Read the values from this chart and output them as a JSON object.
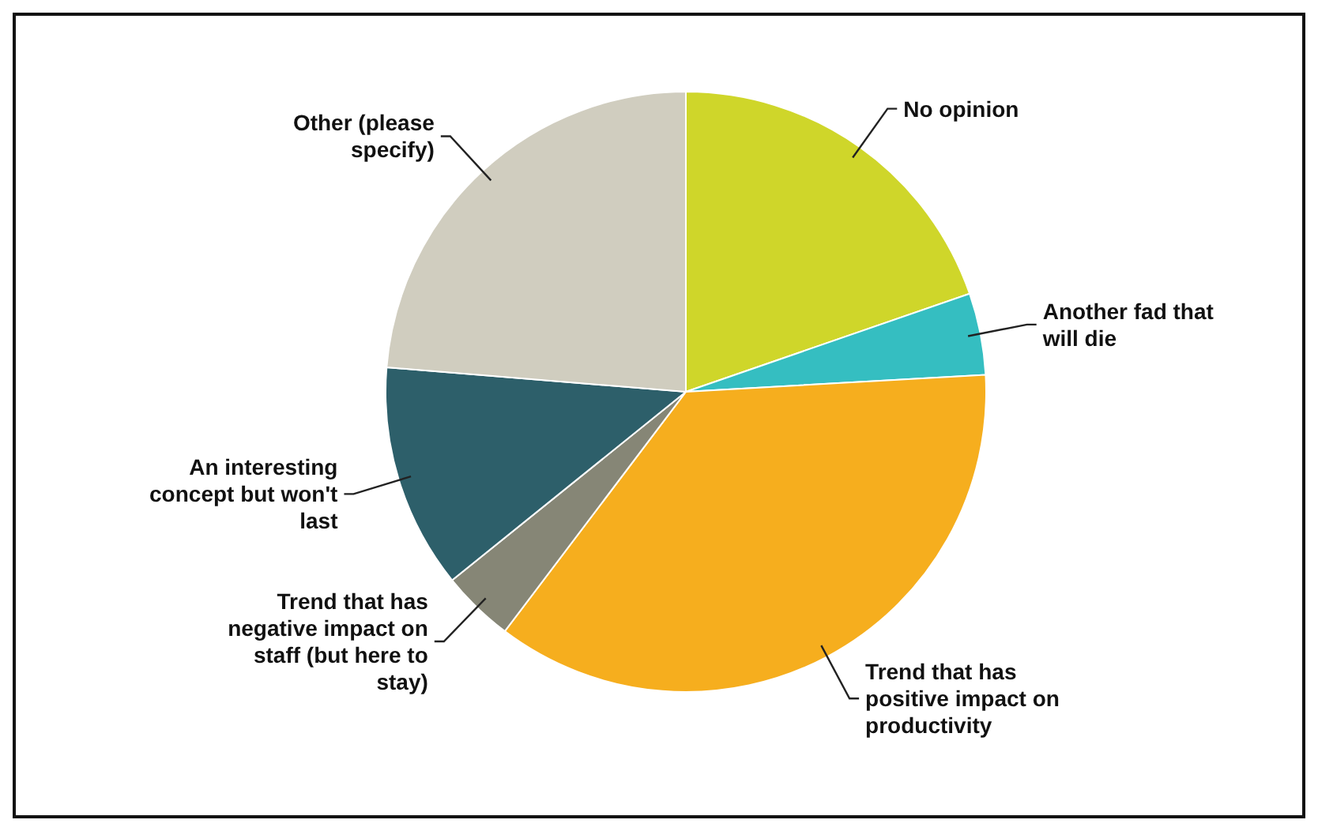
{
  "chart_data": {
    "type": "pie",
    "categories": [
      "No opinion",
      "Another fad that will die",
      "Trend that has positive impact on productivity",
      "Trend that has negative impact on staff (but here to stay)",
      "An interesting concept but won't last",
      "Other (please specify)"
    ],
    "values": [
      19.7,
      4.4,
      36.2,
      3.9,
      12.1,
      23.7
    ],
    "colors": [
      "#cfd62a",
      "#35bec1",
      "#f6ae1e",
      "#868676",
      "#2d5f6a",
      "#d0cdbf"
    ],
    "legend": false
  }
}
